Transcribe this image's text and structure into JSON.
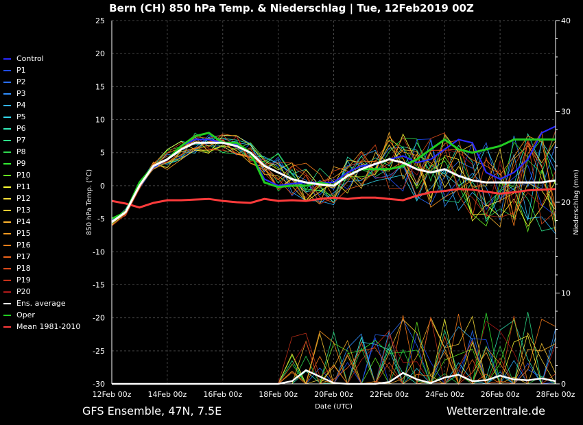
{
  "title": "Bern  (CH)  850 hPa Temp. & Niederschlag | Tue, 12Feb2019 00Z",
  "footer_left": "GFS Ensemble, 47N, 7.5E",
  "footer_right": "Wetterzentrale.de",
  "chart_data": {
    "type": "line",
    "title": "Bern  (CH)  850 hPa Temp. & Niederschlag | Tue, 12Feb2019 00Z",
    "xlabel": "Date (UTC)",
    "ylabel": "850 hPa Temp. (°C)",
    "y2label": "Niederschlag (mm)",
    "ylim": [
      -30,
      25
    ],
    "y2lim": [
      0,
      40
    ],
    "xlim_days": [
      0,
      16
    ],
    "x_ticks": [
      "12Feb 00z",
      "14Feb 00z",
      "16Feb 00z",
      "18Feb 00z",
      "20Feb 00z",
      "22Feb 00z",
      "24Feb 00z",
      "26Feb 00z",
      "28Feb 00z"
    ],
    "y_ticks": [
      25,
      20,
      15,
      10,
      5,
      0,
      -5,
      -10,
      -15,
      -20,
      -25,
      -30
    ],
    "y2_ticks": [
      40,
      30,
      20,
      10,
      0
    ],
    "grid": true,
    "legend_position": "left",
    "legend": [
      {
        "name": "Control",
        "color": "#2a2aff"
      },
      {
        "name": "P1",
        "color": "#1f4dff"
      },
      {
        "name": "P2",
        "color": "#2a6fff"
      },
      {
        "name": "P3",
        "color": "#2f8fff"
      },
      {
        "name": "P4",
        "color": "#33b3ff"
      },
      {
        "name": "P5",
        "color": "#33d9ee"
      },
      {
        "name": "P6",
        "color": "#33eebb"
      },
      {
        "name": "P7",
        "color": "#2ee38a"
      },
      {
        "name": "P8",
        "color": "#2fd94f"
      },
      {
        "name": "P9",
        "color": "#33ee33"
      },
      {
        "name": "P10",
        "color": "#66ee22"
      },
      {
        "name": "P11",
        "color": "#ffff33"
      },
      {
        "name": "P12",
        "color": "#ffe23a"
      },
      {
        "name": "P13",
        "color": "#ffcc33"
      },
      {
        "name": "P14",
        "color": "#ffb52e"
      },
      {
        "name": "P15",
        "color": "#ff9a1f"
      },
      {
        "name": "P16",
        "color": "#ff7f1a"
      },
      {
        "name": "P17",
        "color": "#f0641a"
      },
      {
        "name": "P18",
        "color": "#dd4a1a"
      },
      {
        "name": "P19",
        "color": "#c8321a"
      },
      {
        "name": "P20",
        "color": "#b21a1a"
      },
      {
        "name": "Ens. average",
        "color": "#ffffff"
      },
      {
        "name": "Oper",
        "color": "#22cc22"
      },
      {
        "name": "Mean 1981-2010",
        "color": "#ff3b3b"
      }
    ],
    "series_x_days": [
      0,
      0.5,
      1,
      1.5,
      2,
      2.5,
      3,
      3.5,
      4,
      4.5,
      5,
      5.5,
      6,
      6.5,
      7,
      7.5,
      8,
      8.5,
      9,
      9.5,
      10,
      10.5,
      11,
      11.5,
      12,
      12.5,
      13,
      13.5,
      14,
      14.5,
      15,
      15.5,
      16
    ],
    "ens_average": [
      -5.5,
      -4,
      0,
      3,
      4,
      5.5,
      6.5,
      6.5,
      6.5,
      6,
      5,
      3,
      2,
      1,
      0.5,
      0.2,
      0,
      1.5,
      2.5,
      3.3,
      4,
      3.5,
      2.5,
      2,
      2.5,
      1.5,
      0.8,
      0.5,
      0.5,
      0.5,
      0.5,
      0.5,
      0.8
    ],
    "oper": [
      -5,
      -4,
      0.5,
      3,
      4,
      6,
      7.5,
      8,
      6.5,
      6.5,
      5,
      0.5,
      -0.2,
      0,
      0,
      0.5,
      0,
      1.5,
      2.5,
      2.5,
      2.5,
      3,
      4,
      5.5,
      7,
      5.5,
      5,
      5.5,
      6,
      7,
      7,
      7,
      7
    ],
    "control": [
      -5.2,
      -4,
      0.3,
      2.8,
      4,
      6,
      7,
      7,
      6.5,
      6.3,
      5,
      1,
      0,
      0.3,
      0.5,
      0.5,
      0.5,
      2,
      3,
      3.2,
      4,
      4.5,
      3.5,
      4,
      5.5,
      7,
      6.5,
      2,
      1,
      2,
      4,
      8,
      9
    ],
    "climate_mean": [
      -2.3,
      -2.7,
      -3.3,
      -2.6,
      -2.2,
      -2.2,
      -2.1,
      -2.0,
      -2.3,
      -2.5,
      -2.6,
      -2.0,
      -2.3,
      -2.2,
      -2.3,
      -2.0,
      -1.8,
      -2.0,
      -1.8,
      -1.8,
      -2.0,
      -2.2,
      -1.5,
      -1.0,
      -0.8,
      -0.5,
      -0.6,
      -0.9,
      -1.2,
      -1.0,
      -0.7,
      -0.6,
      -0.5
    ],
    "ens_avg_precip_mm": [
      0,
      0,
      0,
      0,
      0,
      0,
      0,
      0,
      0,
      0,
      0,
      0,
      0,
      0.3,
      1.5,
      0.8,
      0.1,
      0,
      0,
      0,
      0.2,
      1.2,
      0.5,
      0.1,
      0.7,
      1.0,
      0.3,
      0.4,
      0.9,
      0.5,
      0.4,
      0.6,
      0.3
    ]
  }
}
